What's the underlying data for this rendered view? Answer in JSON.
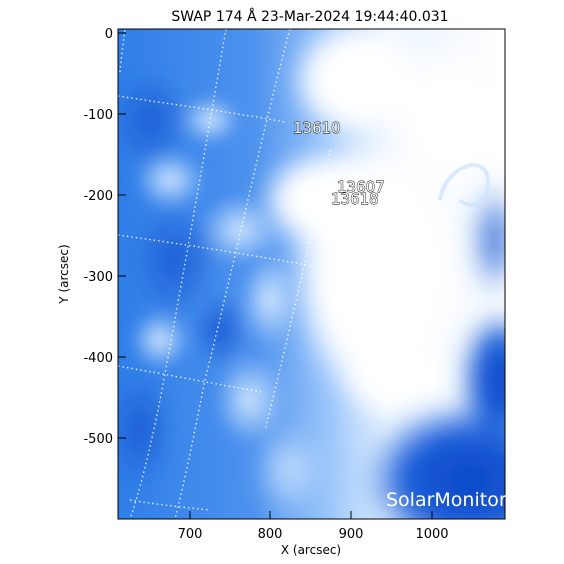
{
  "title": "SWAP 174 Å 23-Mar-2024 19:44:40.031",
  "x_axis": {
    "label": "X (arcsec)",
    "ticks": [
      "700",
      "800",
      "900",
      "1000"
    ]
  },
  "y_axis": {
    "label": "Y (arcsec)",
    "ticks": [
      "0",
      "-100",
      "-200",
      "-300",
      "-400",
      "-500"
    ]
  },
  "active_regions": [
    {
      "id": "13610"
    },
    {
      "id": "13607"
    },
    {
      "id": "13618"
    }
  ],
  "watermark": "SolarMonitor.org",
  "colors": {
    "background": "#ffffff",
    "deep_blue": "#0a3fb8",
    "mid_blue": "#2d7ae6",
    "light_blue": "#a9d0ff",
    "flare_white": "#ffffff"
  }
}
